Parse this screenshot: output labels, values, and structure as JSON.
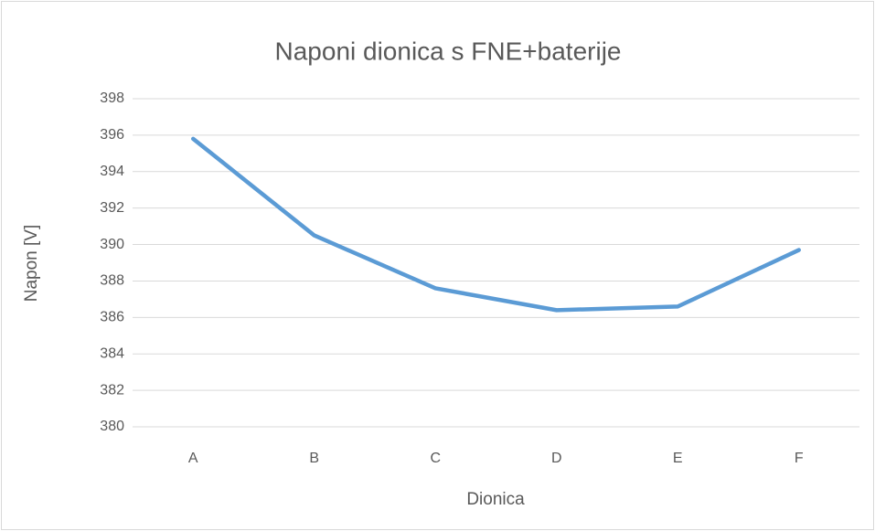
{
  "chart_data": {
    "type": "line",
    "title": "Naponi dionica s FNE+baterije",
    "x_label": "Dionica",
    "y_label": "Napon [V]",
    "categories": [
      "A",
      "B",
      "C",
      "D",
      "E",
      "F"
    ],
    "series": [
      {
        "name": "Napon",
        "color": "#5b9bd5",
        "values": [
          395.8,
          390.5,
          387.6,
          386.4,
          386.6,
          389.7
        ]
      }
    ],
    "ylim": [
      380,
      398
    ],
    "yticks": [
      380,
      382,
      384,
      386,
      388,
      390,
      392,
      394,
      396,
      398
    ],
    "grid": true
  }
}
